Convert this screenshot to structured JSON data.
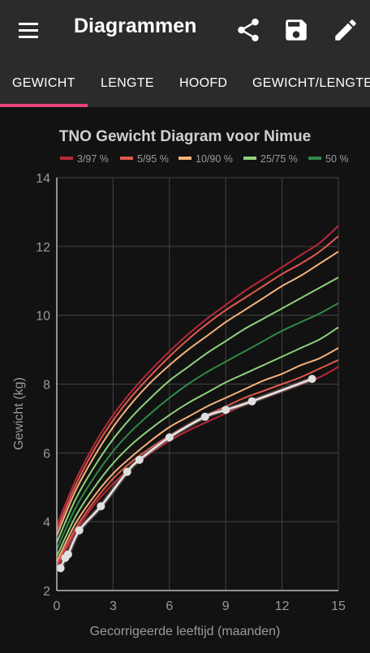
{
  "app": {
    "title": "Diagrammen",
    "menu_icon": "menu-icon",
    "share_icon": "share-icon",
    "save_icon": "save-icon",
    "edit_icon": "edit-icon"
  },
  "tabs": [
    {
      "label": "GEWICHT",
      "active": true
    },
    {
      "label": "LENGTE",
      "active": false
    },
    {
      "label": "HOOFD",
      "active": false
    },
    {
      "label": "GEWICHT/LENGTE",
      "active": false
    }
  ],
  "colors": {
    "accent": "#e8437a",
    "background": "#121212",
    "bar": "#2b2b2b"
  },
  "chart_data": {
    "type": "line",
    "title": "TNO Gewicht Diagram voor Nimue",
    "xlabel": "Gecorrigeerde leeftijd (maanden)",
    "ylabel": "Gewicht (kg)",
    "xlim": [
      0,
      15
    ],
    "ylim": [
      2,
      14
    ],
    "xticks": [
      "0",
      "3",
      "6",
      "9",
      "12",
      "15"
    ],
    "yticks": [
      "2",
      "4",
      "6",
      "8",
      "10",
      "12",
      "14"
    ],
    "grid": true,
    "legend_position": "top",
    "legend": [
      {
        "label": "3/97 %",
        "color": "#b8283a"
      },
      {
        "label": "5/95 %",
        "color": "#e05a4e"
      },
      {
        "label": "10/90 %",
        "color": "#f5b27a"
      },
      {
        "label": "25/75 %",
        "color": "#8ed17a"
      },
      {
        "label": "50 %",
        "color": "#2f8a47"
      }
    ],
    "percentile_x": [
      0,
      1,
      2,
      3,
      4,
      5,
      6,
      7,
      8,
      9,
      10,
      11,
      12,
      13,
      14,
      15
    ],
    "series": [
      {
        "name": "3/97 %",
        "color": "#b8283a",
        "values": [
          3.9,
          5.2,
          6.25,
          7.1,
          7.8,
          8.4,
          8.95,
          9.45,
          9.9,
          10.3,
          10.7,
          11.05,
          11.4,
          11.75,
          12.1,
          12.6
        ]
      },
      {
        "name": "5/95 %",
        "color": "#e05a4e",
        "values": [
          3.75,
          5.05,
          6.1,
          6.95,
          7.65,
          8.25,
          8.8,
          9.3,
          9.75,
          10.15,
          10.5,
          10.85,
          11.2,
          11.5,
          11.85,
          12.3
        ]
      },
      {
        "name": "10/90 %",
        "color": "#f5b27a",
        "values": [
          3.6,
          4.9,
          5.9,
          6.75,
          7.45,
          8.05,
          8.55,
          9.0,
          9.4,
          9.8,
          10.15,
          10.5,
          10.85,
          11.15,
          11.5,
          11.85
        ]
      },
      {
        "name": "25/75 %",
        "color": "#8ed17a",
        "values": [
          3.4,
          4.65,
          5.6,
          6.4,
          7.05,
          7.6,
          8.1,
          8.5,
          8.9,
          9.25,
          9.6,
          9.9,
          10.2,
          10.5,
          10.8,
          11.1
        ]
      },
      {
        "name": "50 %",
        "color": "#2f8a47",
        "values": [
          3.2,
          4.4,
          5.3,
          6.05,
          6.65,
          7.15,
          7.6,
          8.0,
          8.35,
          8.65,
          8.95,
          9.25,
          9.55,
          9.8,
          10.05,
          10.35
        ]
      },
      {
        "name": "25/75 %",
        "color": "#8ed17a",
        "values": [
          3.0,
          4.15,
          5.0,
          5.7,
          6.25,
          6.7,
          7.1,
          7.45,
          7.75,
          8.05,
          8.3,
          8.55,
          8.8,
          9.05,
          9.3,
          9.65
        ]
      },
      {
        "name": "10/90 %",
        "color": "#f5b27a",
        "values": [
          2.85,
          3.95,
          4.75,
          5.4,
          5.9,
          6.35,
          6.75,
          7.05,
          7.35,
          7.6,
          7.85,
          8.1,
          8.3,
          8.55,
          8.75,
          9.05
        ]
      },
      {
        "name": "5/95 %",
        "color": "#e05a4e",
        "values": [
          2.75,
          3.8,
          4.6,
          5.25,
          5.75,
          6.15,
          6.5,
          6.8,
          7.1,
          7.35,
          7.6,
          7.8,
          8.0,
          8.2,
          8.45,
          8.7
        ]
      },
      {
        "name": "3/97 %",
        "color": "#b8283a",
        "values": [
          2.65,
          3.7,
          4.5,
          5.1,
          5.6,
          6.0,
          6.35,
          6.65,
          6.9,
          7.15,
          7.4,
          7.6,
          7.8,
          8.0,
          8.2,
          8.5
        ]
      }
    ],
    "measurements": {
      "x": [
        0.2,
        0.45,
        0.6,
        1.2,
        2.35,
        3.75,
        4.4,
        6.0,
        7.9,
        9.0,
        10.4,
        13.6
      ],
      "y": [
        2.65,
        2.95,
        3.05,
        3.75,
        4.45,
        5.45,
        5.8,
        6.45,
        7.05,
        7.25,
        7.5,
        8.15
      ]
    }
  }
}
